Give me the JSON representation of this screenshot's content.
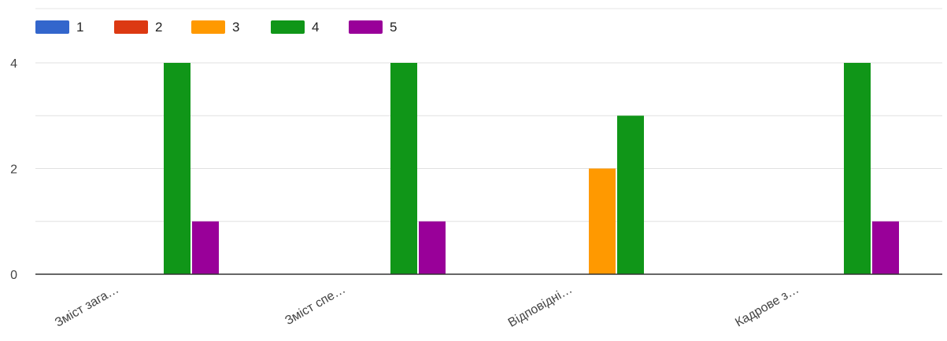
{
  "chart_data": {
    "type": "bar",
    "categories": [
      "Зміст зага…",
      "Зміст спе…",
      "Відповідні…",
      "Кадрове з…"
    ],
    "series": [
      {
        "name": "1",
        "color": "#3366cc",
        "values": [
          0,
          0,
          0,
          0
        ]
      },
      {
        "name": "2",
        "color": "#dc3912",
        "values": [
          0,
          0,
          0,
          0
        ]
      },
      {
        "name": "3",
        "color": "#ff9900",
        "values": [
          0,
          0,
          2,
          0
        ]
      },
      {
        "name": "4",
        "color": "#109618",
        "values": [
          4,
          4,
          3,
          4
        ]
      },
      {
        "name": "5",
        "color": "#990099",
        "values": [
          1,
          1,
          0,
          1
        ]
      }
    ],
    "ylim": [
      0,
      4
    ],
    "yticks": [
      0,
      2,
      4
    ],
    "grid": true,
    "legend_position": "top-left"
  }
}
